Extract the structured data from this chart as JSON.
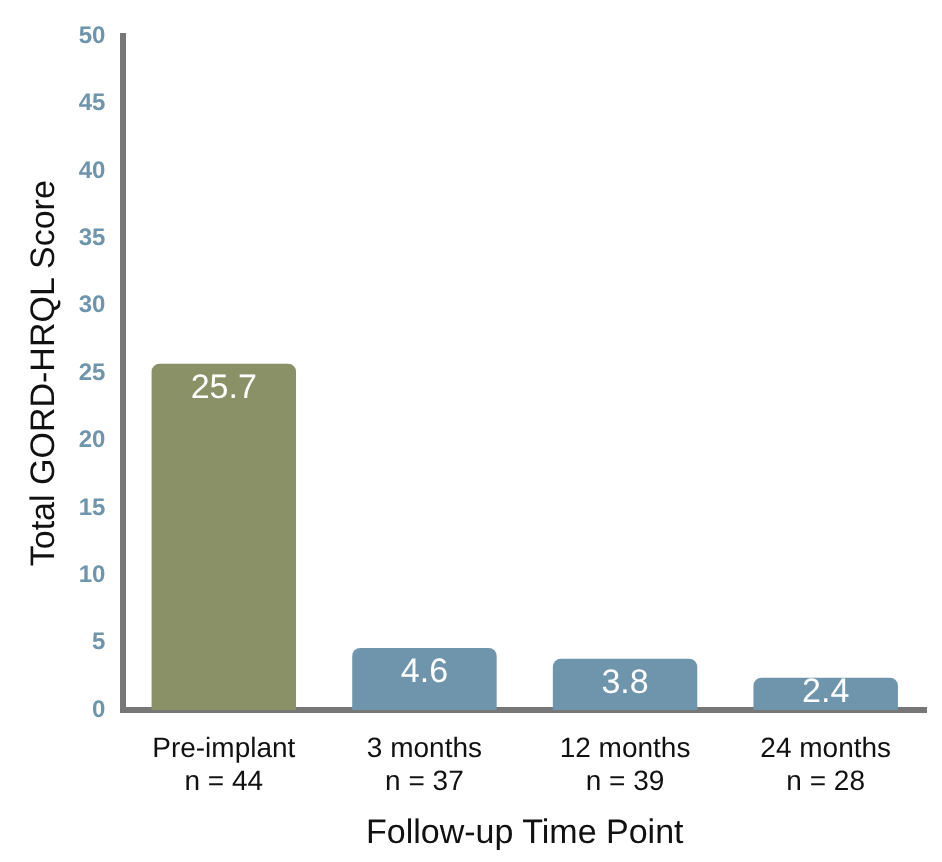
{
  "chart_data": {
    "type": "bar",
    "xlabel": "Follow-up Time Point",
    "ylabel": "Total GORD-HRQL Score",
    "categories": [
      "Pre-implant\nn = 44",
      "3 months\nn = 37",
      "12 months\nn = 39",
      "24 months\nn = 28"
    ],
    "values": [
      25.7,
      4.6,
      3.8,
      2.4
    ],
    "colors": [
      "#8a9166",
      "#6f95ad",
      "#6f95ad",
      "#6f95ad"
    ],
    "data_labels": true,
    "ylim": [
      0,
      50
    ],
    "yticks": [
      0,
      5,
      10,
      15,
      20,
      25,
      30,
      35,
      40,
      45,
      50
    ],
    "grid": false,
    "legend": false
  }
}
